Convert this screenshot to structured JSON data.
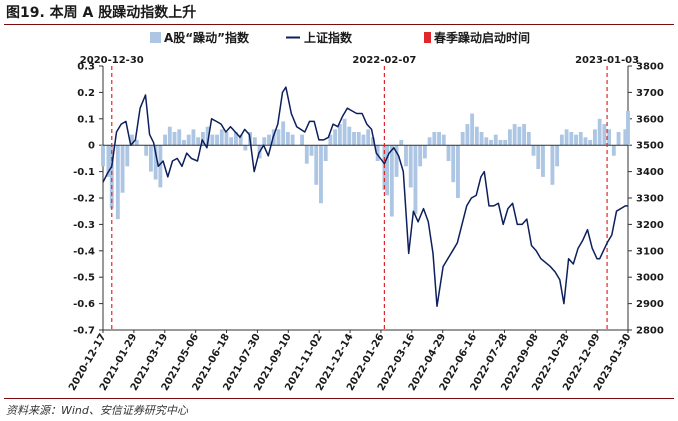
{
  "figure": {
    "title": "图19. 本周 A 股躁动指数上升",
    "source": "资料来源：Wind、安信证券研究中心"
  },
  "colors": {
    "bars": "#adc6e4",
    "line": "#0d1f5c",
    "marker": "#e0282c"
  },
  "chart_data": {
    "type": "bar+line",
    "x_tick_labels": [
      "2020-12-17",
      "2021-01-29",
      "2021-03-19",
      "2021-05-06",
      "2021-06-18",
      "2021-07-30",
      "2021-09-10",
      "2021-11-02",
      "2021-12-14",
      "2022-01-26",
      "2022-03-16",
      "2022-04-29",
      "2022-06-16",
      "2022-07-28",
      "2022-09-08",
      "2022-10-28",
      "2022-12-09",
      "2023-01-30"
    ],
    "x_range": [
      "2020-12-17",
      "2023-02-03"
    ],
    "legend": [
      "A股“躁动”指数",
      "上证指数",
      "春季躁动启动时间"
    ],
    "legend_position": "top",
    "left_axis": {
      "ylim": [
        -0.7,
        0.3
      ],
      "ticks": [
        "0.3",
        "0.2",
        "0.1",
        "0",
        "-0.1",
        "-0.2",
        "-0.3",
        "-0.4",
        "-0.5",
        "-0.6",
        "-0.7"
      ]
    },
    "right_axis": {
      "ylim": [
        2800,
        3800
      ],
      "ticks": [
        "3800",
        "3700",
        "3600",
        "3500",
        "3400",
        "3300",
        "3200",
        "3100",
        "3000",
        "2900",
        "2800"
      ]
    },
    "markers": [
      {
        "date": "2020-12-30",
        "label": "2020-12-30"
      },
      {
        "date": "2022-02-07",
        "label": "2022-02-07"
      },
      {
        "date": "2023-01-03",
        "label": "2023-01-03"
      }
    ],
    "series": [
      {
        "name": "A股“躁动”指数",
        "kind": "bar",
        "axis": "left",
        "x": [
          "2020-12-17",
          "2020-12-25",
          "2020-12-30",
          "2021-01-08",
          "2021-01-15",
          "2021-01-22",
          "2021-01-29",
          "2021-02-05",
          "2021-02-19",
          "2021-02-26",
          "2021-03-05",
          "2021-03-12",
          "2021-03-19",
          "2021-03-26",
          "2021-04-02",
          "2021-04-09",
          "2021-04-16",
          "2021-04-23",
          "2021-04-30",
          "2021-05-07",
          "2021-05-14",
          "2021-05-21",
          "2021-05-28",
          "2021-06-04",
          "2021-06-11",
          "2021-06-18",
          "2021-06-25",
          "2021-07-02",
          "2021-07-09",
          "2021-07-16",
          "2021-07-23",
          "2021-07-30",
          "2021-08-06",
          "2021-08-13",
          "2021-08-20",
          "2021-08-27",
          "2021-09-03",
          "2021-09-10",
          "2021-09-17",
          "2021-09-24",
          "2021-10-08",
          "2021-10-15",
          "2021-10-22",
          "2021-10-29",
          "2021-11-05",
          "2021-11-12",
          "2021-11-19",
          "2021-11-26",
          "2021-12-03",
          "2021-12-10",
          "2021-12-17",
          "2021-12-24",
          "2021-12-31",
          "2022-01-07",
          "2022-01-14",
          "2022-01-21",
          "2022-01-28",
          "2022-02-07",
          "2022-02-11",
          "2022-02-18",
          "2022-02-25",
          "2022-03-04",
          "2022-03-11",
          "2022-03-18",
          "2022-03-25",
          "2022-04-01",
          "2022-04-08",
          "2022-04-15",
          "2022-04-22",
          "2022-04-29",
          "2022-05-06",
          "2022-05-13",
          "2022-05-20",
          "2022-05-27",
          "2022-06-03",
          "2022-06-10",
          "2022-06-17",
          "2022-06-24",
          "2022-07-01",
          "2022-07-08",
          "2022-07-15",
          "2022-07-22",
          "2022-07-29",
          "2022-08-05",
          "2022-08-12",
          "2022-08-19",
          "2022-08-26",
          "2022-09-02",
          "2022-09-09",
          "2022-09-16",
          "2022-09-23",
          "2022-09-30",
          "2022-10-14",
          "2022-10-21",
          "2022-10-28",
          "2022-11-04",
          "2022-11-11",
          "2022-11-18",
          "2022-11-25",
          "2022-12-02",
          "2022-12-09",
          "2022-12-16",
          "2022-12-23",
          "2022-12-30",
          "2023-01-06",
          "2023-01-13",
          "2023-01-20",
          "2023-01-30",
          "2023-02-03"
        ],
        "values": [
          -0.08,
          -0.12,
          -0.24,
          -0.28,
          -0.18,
          -0.08,
          0.04,
          0.02,
          -0.04,
          -0.1,
          -0.13,
          -0.16,
          0.04,
          0.07,
          0.05,
          0.06,
          0.02,
          0.04,
          0.06,
          0.03,
          0.05,
          0.07,
          0.04,
          0.04,
          0.06,
          0.05,
          0.03,
          0.05,
          0.04,
          -0.02,
          0.05,
          0.03,
          -0.05,
          0.03,
          0.04,
          0.06,
          0.06,
          0.09,
          0.05,
          0.04,
          0.04,
          -0.07,
          -0.04,
          -0.15,
          -0.22,
          -0.06,
          0.04,
          0.06,
          0.08,
          0.1,
          0.07,
          0.05,
          0.05,
          0.04,
          0.06,
          0.03,
          -0.06,
          -0.17,
          -0.19,
          -0.27,
          -0.12,
          0.02,
          -0.08,
          -0.16,
          -0.26,
          -0.08,
          -0.05,
          0.03,
          0.05,
          0.05,
          0.04,
          -0.06,
          -0.14,
          -0.2,
          0.05,
          0.08,
          0.12,
          0.07,
          0.05,
          0.03,
          0.02,
          0.04,
          0.02,
          0.02,
          0.06,
          0.08,
          0.07,
          0.08,
          0.05,
          -0.04,
          -0.09,
          -0.12,
          -0.15,
          -0.08,
          0.04,
          0.06,
          0.05,
          0.04,
          0.05,
          0.03,
          0.02,
          0.06,
          0.1,
          0.08,
          0.06,
          -0.04,
          0.05,
          0.06,
          0.13
        ]
      },
      {
        "name": "上证指数",
        "kind": "line",
        "axis": "right",
        "x": [
          "2020-12-17",
          "2020-12-24",
          "2020-12-30",
          "2021-01-06",
          "2021-01-13",
          "2021-01-20",
          "2021-01-27",
          "2021-02-03",
          "2021-02-10",
          "2021-02-18",
          "2021-02-24",
          "2021-03-02",
          "2021-03-09",
          "2021-03-16",
          "2021-03-23",
          "2021-03-30",
          "2021-04-06",
          "2021-04-13",
          "2021-04-20",
          "2021-04-27",
          "2021-05-06",
          "2021-05-13",
          "2021-05-20",
          "2021-05-27",
          "2021-06-03",
          "2021-06-10",
          "2021-06-17",
          "2021-06-24",
          "2021-07-01",
          "2021-07-08",
          "2021-07-15",
          "2021-07-22",
          "2021-07-29",
          "2021-08-05",
          "2021-08-12",
          "2021-08-19",
          "2021-08-26",
          "2021-09-02",
          "2021-09-09",
          "2021-09-14",
          "2021-09-22",
          "2021-09-30",
          "2021-10-12",
          "2021-10-19",
          "2021-10-26",
          "2021-11-02",
          "2021-11-09",
          "2021-11-16",
          "2021-11-23",
          "2021-11-30",
          "2021-12-07",
          "2021-12-14",
          "2021-12-21",
          "2021-12-28",
          "2022-01-05",
          "2022-01-12",
          "2022-01-19",
          "2022-01-26",
          "2022-02-07",
          "2022-02-14",
          "2022-02-21",
          "2022-02-28",
          "2022-03-07",
          "2022-03-15",
          "2022-03-22",
          "2022-03-29",
          "2022-04-06",
          "2022-04-13",
          "2022-04-20",
          "2022-04-26",
          "2022-05-05",
          "2022-05-12",
          "2022-05-19",
          "2022-05-26",
          "2022-06-02",
          "2022-06-09",
          "2022-06-16",
          "2022-06-23",
          "2022-06-30",
          "2022-07-05",
          "2022-07-12",
          "2022-07-19",
          "2022-07-26",
          "2022-08-02",
          "2022-08-09",
          "2022-08-16",
          "2022-08-23",
          "2022-08-30",
          "2022-09-06",
          "2022-09-13",
          "2022-09-20",
          "2022-09-27",
          "2022-10-11",
          "2022-10-18",
          "2022-10-25",
          "2022-10-31",
          "2022-11-07",
          "2022-11-14",
          "2022-11-21",
          "2022-11-28",
          "2022-12-05",
          "2022-12-12",
          "2022-12-19",
          "2022-12-23",
          "2023-01-03",
          "2023-01-10",
          "2023-01-17",
          "2023-01-30",
          "2023-02-03"
        ],
        "values": [
          3360,
          3395,
          3420,
          3550,
          3580,
          3590,
          3500,
          3520,
          3640,
          3690,
          3540,
          3510,
          3420,
          3440,
          3380,
          3440,
          3450,
          3420,
          3470,
          3450,
          3440,
          3520,
          3490,
          3600,
          3590,
          3580,
          3550,
          3570,
          3550,
          3530,
          3560,
          3540,
          3400,
          3470,
          3500,
          3460,
          3530,
          3580,
          3700,
          3720,
          3620,
          3570,
          3550,
          3590,
          3590,
          3520,
          3520,
          3530,
          3580,
          3570,
          3610,
          3640,
          3630,
          3620,
          3620,
          3580,
          3560,
          3470,
          3430,
          3470,
          3490,
          3460,
          3400,
          3090,
          3250,
          3210,
          3260,
          3210,
          3090,
          2890,
          3040,
          3070,
          3100,
          3130,
          3200,
          3270,
          3300,
          3310,
          3380,
          3400,
          3270,
          3270,
          3280,
          3200,
          3260,
          3280,
          3200,
          3200,
          3220,
          3120,
          3100,
          3070,
          3040,
          3020,
          2990,
          2900,
          3070,
          3050,
          3110,
          3140,
          3180,
          3110,
          3070,
          3070,
          3130,
          3160,
          3250,
          3270,
          3270
        ]
      }
    ]
  }
}
